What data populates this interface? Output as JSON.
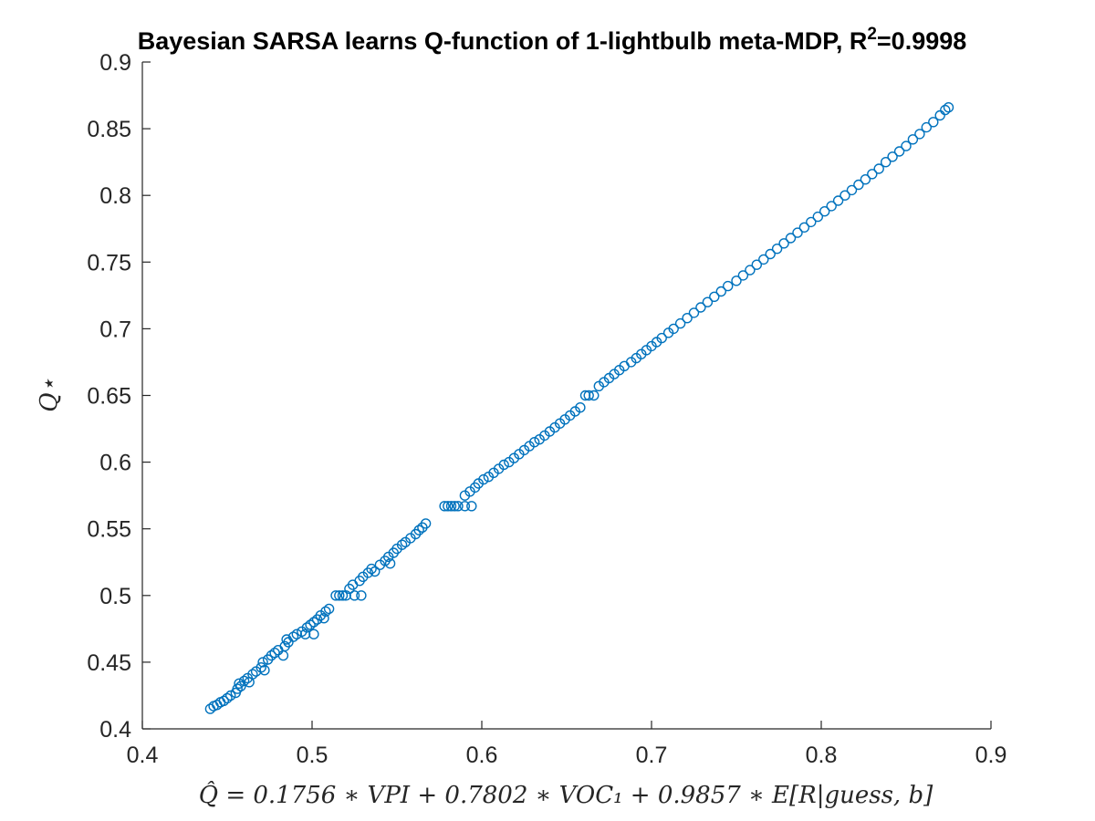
{
  "chart_data": {
    "type": "scatter",
    "title_main": "Bayesian SARSA learns Q-function of 1-lightbulb meta-MDP, R",
    "title_sup": "2",
    "title_tail": "=0.9998",
    "xlabel": "Q̂ = 0.1756 ∗ VPI + 0.7802 ∗ VOC₁ + 0.9857 ∗ E[R|guess, b]",
    "ylabel": "Q⋆",
    "xlim": [
      0.4,
      0.9
    ],
    "ylim": [
      0.4,
      0.9
    ],
    "xticks": [
      "0.4",
      "0.5",
      "0.6",
      "0.7",
      "0.8",
      "0.9"
    ],
    "yticks": [
      "0.4",
      "0.45",
      "0.5",
      "0.55",
      "0.6",
      "0.65",
      "0.7",
      "0.75",
      "0.8",
      "0.85",
      "0.9"
    ],
    "grid": false,
    "marker": "circle-open",
    "color": "#0072BD",
    "points": [
      [
        0.44,
        0.415
      ],
      [
        0.442,
        0.417
      ],
      [
        0.444,
        0.418
      ],
      [
        0.446,
        0.42
      ],
      [
        0.448,
        0.421
      ],
      [
        0.45,
        0.423
      ],
      [
        0.452,
        0.425
      ],
      [
        0.455,
        0.427
      ],
      [
        0.456,
        0.43
      ],
      [
        0.458,
        0.432
      ],
      [
        0.457,
        0.434
      ],
      [
        0.46,
        0.436
      ],
      [
        0.462,
        0.438
      ],
      [
        0.463,
        0.435
      ],
      [
        0.465,
        0.441
      ],
      [
        0.467,
        0.443
      ],
      [
        0.47,
        0.446
      ],
      [
        0.472,
        0.444
      ],
      [
        0.471,
        0.45
      ],
      [
        0.474,
        0.452
      ],
      [
        0.476,
        0.455
      ],
      [
        0.478,
        0.457
      ],
      [
        0.48,
        0.459
      ],
      [
        0.483,
        0.455
      ],
      [
        0.484,
        0.462
      ],
      [
        0.486,
        0.465
      ],
      [
        0.485,
        0.467
      ],
      [
        0.489,
        0.469
      ],
      [
        0.491,
        0.471
      ],
      [
        0.494,
        0.473
      ],
      [
        0.496,
        0.471
      ],
      [
        0.497,
        0.476
      ],
      [
        0.499,
        0.478
      ],
      [
        0.501,
        0.471
      ],
      [
        0.501,
        0.48
      ],
      [
        0.503,
        0.482
      ],
      [
        0.505,
        0.485
      ],
      [
        0.507,
        0.483
      ],
      [
        0.508,
        0.488
      ],
      [
        0.51,
        0.49
      ],
      [
        0.514,
        0.5
      ],
      [
        0.516,
        0.5
      ],
      [
        0.518,
        0.5
      ],
      [
        0.52,
        0.5
      ],
      [
        0.522,
        0.505
      ],
      [
        0.524,
        0.508
      ],
      [
        0.525,
        0.5
      ],
      [
        0.528,
        0.511
      ],
      [
        0.529,
        0.5
      ],
      [
        0.53,
        0.514
      ],
      [
        0.533,
        0.517
      ],
      [
        0.535,
        0.52
      ],
      [
        0.537,
        0.518
      ],
      [
        0.54,
        0.523
      ],
      [
        0.543,
        0.526
      ],
      [
        0.546,
        0.524
      ],
      [
        0.545,
        0.529
      ],
      [
        0.548,
        0.532
      ],
      [
        0.55,
        0.535
      ],
      [
        0.553,
        0.538
      ],
      [
        0.555,
        0.54
      ],
      [
        0.558,
        0.543
      ],
      [
        0.561,
        0.546
      ],
      [
        0.563,
        0.549
      ],
      [
        0.565,
        0.551
      ],
      [
        0.567,
        0.554
      ],
      [
        0.578,
        0.567
      ],
      [
        0.58,
        0.567
      ],
      [
        0.582,
        0.567
      ],
      [
        0.584,
        0.567
      ],
      [
        0.586,
        0.567
      ],
      [
        0.59,
        0.567
      ],
      [
        0.594,
        0.567
      ],
      [
        0.59,
        0.575
      ],
      [
        0.593,
        0.578
      ],
      [
        0.596,
        0.581
      ],
      [
        0.598,
        0.584
      ],
      [
        0.601,
        0.587
      ],
      [
        0.604,
        0.589
      ],
      [
        0.607,
        0.592
      ],
      [
        0.61,
        0.595
      ],
      [
        0.613,
        0.598
      ],
      [
        0.616,
        0.6
      ],
      [
        0.619,
        0.603
      ],
      [
        0.622,
        0.606
      ],
      [
        0.625,
        0.609
      ],
      [
        0.628,
        0.612
      ],
      [
        0.631,
        0.615
      ],
      [
        0.634,
        0.617
      ],
      [
        0.637,
        0.62
      ],
      [
        0.64,
        0.623
      ],
      [
        0.643,
        0.626
      ],
      [
        0.646,
        0.629
      ],
      [
        0.649,
        0.632
      ],
      [
        0.652,
        0.635
      ],
      [
        0.655,
        0.638
      ],
      [
        0.658,
        0.641
      ],
      [
        0.661,
        0.65
      ],
      [
        0.663,
        0.65
      ],
      [
        0.666,
        0.65
      ],
      [
        0.669,
        0.657
      ],
      [
        0.672,
        0.66
      ],
      [
        0.675,
        0.663
      ],
      [
        0.678,
        0.666
      ],
      [
        0.681,
        0.669
      ],
      [
        0.684,
        0.672
      ],
      [
        0.688,
        0.675
      ],
      [
        0.691,
        0.678
      ],
      [
        0.694,
        0.681
      ],
      [
        0.697,
        0.684
      ],
      [
        0.7,
        0.687
      ],
      [
        0.703,
        0.69
      ],
      [
        0.706,
        0.693
      ],
      [
        0.71,
        0.697
      ],
      [
        0.713,
        0.7
      ],
      [
        0.717,
        0.704
      ],
      [
        0.721,
        0.708
      ],
      [
        0.725,
        0.712
      ],
      [
        0.729,
        0.716
      ],
      [
        0.733,
        0.72
      ],
      [
        0.737,
        0.724
      ],
      [
        0.741,
        0.728
      ],
      [
        0.745,
        0.732
      ],
      [
        0.75,
        0.736
      ],
      [
        0.754,
        0.74
      ],
      [
        0.758,
        0.744
      ],
      [
        0.762,
        0.748
      ],
      [
        0.766,
        0.752
      ],
      [
        0.77,
        0.756
      ],
      [
        0.774,
        0.76
      ],
      [
        0.778,
        0.764
      ],
      [
        0.782,
        0.768
      ],
      [
        0.786,
        0.772
      ],
      [
        0.79,
        0.776
      ],
      [
        0.794,
        0.78
      ],
      [
        0.798,
        0.784
      ],
      [
        0.802,
        0.788
      ],
      [
        0.806,
        0.792
      ],
      [
        0.81,
        0.796
      ],
      [
        0.814,
        0.8
      ],
      [
        0.818,
        0.804
      ],
      [
        0.822,
        0.808
      ],
      [
        0.826,
        0.812
      ],
      [
        0.83,
        0.816
      ],
      [
        0.834,
        0.82
      ],
      [
        0.838,
        0.825
      ],
      [
        0.842,
        0.829
      ],
      [
        0.846,
        0.833
      ],
      [
        0.85,
        0.837
      ],
      [
        0.854,
        0.842
      ],
      [
        0.858,
        0.846
      ],
      [
        0.862,
        0.851
      ],
      [
        0.866,
        0.855
      ],
      [
        0.87,
        0.86
      ],
      [
        0.873,
        0.864
      ],
      [
        0.875,
        0.866
      ]
    ]
  }
}
